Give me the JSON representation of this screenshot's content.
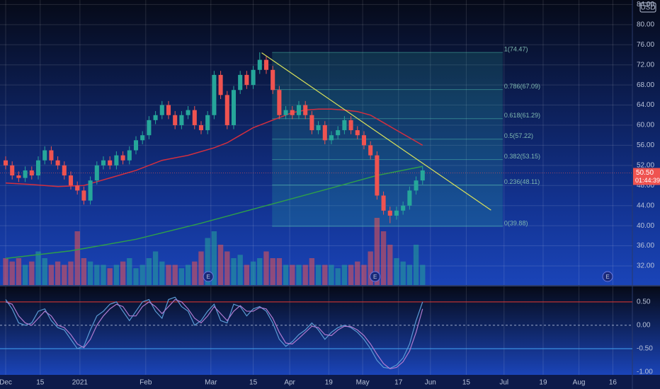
{
  "chart_data": {
    "type": "candlestick",
    "currency": "USD",
    "up_color": "#26a69a",
    "down_color": "#ef5350",
    "xlim": [
      -0.87,
      96.2
    ],
    "xticks": [
      {
        "value": 0,
        "label": "Dec"
      },
      {
        "value": 5.3,
        "label": "15"
      },
      {
        "value": 11.4,
        "label": "2021"
      },
      {
        "value": 21.5,
        "label": "Feb"
      },
      {
        "value": 31.5,
        "label": "Mar"
      },
      {
        "value": 38,
        "label": "15"
      },
      {
        "value": 43.6,
        "label": "Apr"
      },
      {
        "value": 49.6,
        "label": "19"
      },
      {
        "value": 54.8,
        "label": "May"
      },
      {
        "value": 60.3,
        "label": "17"
      },
      {
        "value": 65.2,
        "label": "Jun"
      },
      {
        "value": 70.7,
        "label": "15"
      },
      {
        "value": 76.5,
        "label": "Jul"
      },
      {
        "value": 82.5,
        "label": "19"
      },
      {
        "value": 88,
        "label": "Aug"
      },
      {
        "value": 93.2,
        "label": "16"
      }
    ],
    "ylim": [
      28.2,
      84.9
    ],
    "yticks": [
      {
        "value": 84,
        "label": "84.00"
      },
      {
        "value": 80,
        "label": "80.00"
      },
      {
        "value": 76,
        "label": "76.00"
      },
      {
        "value": 72,
        "label": "72.00"
      },
      {
        "value": 68,
        "label": "68.00"
      },
      {
        "value": 64,
        "label": "64.00"
      },
      {
        "value": 60,
        "label": "60.00"
      },
      {
        "value": 56,
        "label": "56.00"
      },
      {
        "value": 52,
        "label": "52.00"
      },
      {
        "value": 48,
        "label": "48.00"
      },
      {
        "value": 44,
        "label": "44.00"
      },
      {
        "value": 40,
        "label": "40.00"
      },
      {
        "value": 36,
        "label": "36.00"
      },
      {
        "value": 32,
        "label": "32.00"
      }
    ],
    "open": [
      53,
      52,
      50,
      49.5,
      51,
      50,
      53,
      55,
      53,
      52,
      50,
      48,
      47,
      45,
      49,
      52,
      53,
      52,
      54,
      53,
      55,
      57,
      58,
      61,
      62,
      64,
      62,
      60,
      62,
      63,
      60,
      59,
      62,
      70,
      66,
      60,
      67,
      70,
      68,
      71,
      73,
      71,
      67,
      62,
      63,
      62,
      64,
      62,
      59,
      60,
      57,
      58,
      59,
      61,
      59,
      58,
      56,
      54,
      46,
      43,
      42,
      43,
      44,
      47,
      49
    ],
    "high": [
      53.8,
      52.8,
      50.8,
      51.8,
      51.8,
      53.8,
      55.8,
      55.8,
      53.8,
      52.8,
      50.8,
      48.8,
      47.8,
      49.8,
      52.8,
      53.8,
      53.8,
      54.8,
      54.8,
      55.8,
      57.8,
      58.8,
      61.8,
      62.8,
      64.8,
      64.8,
      62.8,
      62.8,
      63.8,
      63.8,
      60.8,
      62.8,
      70.8,
      70.8,
      66.8,
      67.8,
      70.8,
      70.8,
      71.8,
      74.5,
      73.8,
      71.8,
      67.8,
      63.8,
      63.8,
      64.8,
      64.8,
      62.8,
      60.8,
      60.8,
      58.8,
      59.8,
      61.8,
      61.8,
      59.8,
      58.8,
      56.8,
      54.8,
      46.8,
      43.8,
      43.8,
      44.8,
      47.8,
      49.8,
      51.8
    ],
    "low": [
      51.2,
      49.2,
      48.7,
      48.7,
      49.2,
      49.2,
      52.2,
      52.2,
      51.2,
      49.2,
      47.2,
      46.2,
      44.2,
      44.2,
      48.2,
      51.2,
      51.2,
      51.2,
      52.2,
      52.2,
      54.2,
      56.2,
      57.2,
      60.2,
      61.2,
      61.2,
      59.2,
      59.2,
      61.2,
      59.2,
      58.2,
      58.2,
      61.2,
      65.2,
      59.2,
      59.2,
      66.2,
      67.2,
      67.2,
      70.2,
      70.2,
      66.2,
      61.2,
      61.2,
      61.2,
      61.2,
      61.2,
      58.2,
      58.2,
      56.2,
      56.2,
      57.2,
      58.2,
      58.2,
      57.2,
      55.2,
      53.2,
      45.2,
      42.2,
      40.5,
      41.2,
      42.2,
      43.2,
      46.2,
      48.2
    ],
    "close": [
      52,
      50,
      49.5,
      51,
      50,
      53,
      55,
      53,
      52,
      50,
      48,
      47,
      45,
      49,
      52,
      53,
      52,
      54,
      53,
      55,
      57,
      58,
      61,
      62,
      64,
      62,
      60,
      62,
      63,
      60,
      59,
      62,
      70,
      66,
      60,
      67,
      70,
      68,
      71,
      73,
      71,
      67,
      62,
      63,
      62,
      64,
      62,
      59,
      60,
      57,
      58,
      59,
      61,
      59,
      58,
      56,
      54,
      46,
      43,
      42,
      43,
      44,
      47,
      49,
      51
    ],
    "volume": [
      4,
      3.5,
      4,
      3,
      3.5,
      5,
      4,
      3,
      3.5,
      3,
      3.5,
      8,
      4,
      3.5,
      3,
      3,
      2.5,
      3,
      3.5,
      4,
      2.5,
      3,
      4,
      5,
      3.5,
      3,
      3,
      2.5,
      3,
      3.5,
      5,
      7,
      8,
      6,
      5,
      4,
      4.5,
      3,
      3.5,
      4,
      5,
      4,
      4,
      3,
      3,
      3,
      3,
      4,
      3,
      3,
      3,
      2.5,
      3,
      3,
      3.5,
      3,
      5,
      10,
      8,
      6,
      4,
      3.5,
      3,
      6,
      3
    ],
    "moving_averages": [
      {
        "color": "#d32f3f",
        "x": [
          0,
          4,
          8,
          12,
          16,
          20,
          24,
          28,
          32,
          34,
          36,
          38,
          40,
          42,
          44,
          46,
          48,
          50,
          52,
          54,
          56,
          58,
          60,
          62,
          64
        ],
        "values": [
          48.5,
          48.2,
          47.8,
          48,
          49.5,
          51,
          53,
          54,
          55.5,
          56.5,
          58,
          59.5,
          60.5,
          61.5,
          62.5,
          63,
          63.2,
          63.2,
          63,
          62.7,
          62,
          60.5,
          59,
          57.5,
          56
        ]
      },
      {
        "color": "#2e9e4a",
        "x": [
          0,
          10,
          20,
          30,
          40,
          50,
          57,
          64
        ],
        "values": [
          33.5,
          35,
          37.3,
          40.5,
          44,
          47.5,
          50,
          51.8
        ]
      }
    ],
    "last_price": {
      "value": 50.5,
      "label": "50.50"
    },
    "countdown": "01:44:39",
    "trend_line": {
      "color": "#d8e05a",
      "x": [
        39.3,
        74.5
      ],
      "values": [
        74.4,
        43.1
      ]
    },
    "fib_retracement": {
      "x": [
        40.9,
        76.3
      ],
      "levels": [
        {
          "label": "1(74.47)",
          "value": 74.47
        },
        {
          "label": "0.786(67.09)",
          "value": 67.09
        },
        {
          "label": "0.618(61.29)",
          "value": 61.29
        },
        {
          "label": "0.5(57.22)",
          "value": 57.22
        },
        {
          "label": "0.382(53.15)",
          "value": 53.15
        },
        {
          "label": "0.236(48.11)",
          "value": 48.11
        },
        {
          "label": "0(39.88)",
          "value": 39.88
        }
      ]
    },
    "earnings": [
      {
        "x": 31.1,
        "label": "E"
      },
      {
        "x": 56.7,
        "label": "E"
      },
      {
        "x": 92.4,
        "label": "E"
      }
    ],
    "oscillator": {
      "ylim": [
        -1.06,
        0.83
      ],
      "yticks": [
        {
          "value": 0.5,
          "label": "0.50"
        },
        {
          "value": 0,
          "label": "0.00"
        },
        {
          "value": -0.5,
          "label": "-0.50"
        },
        {
          "value": -1,
          "label": "-1.00"
        }
      ],
      "series": [
        {
          "color": "#5b9bd5",
          "values": [
            0.55,
            0.35,
            0.05,
            0.0,
            0.05,
            0.3,
            0.35,
            0.1,
            -0.05,
            -0.1,
            -0.3,
            -0.5,
            -0.45,
            -0.1,
            0.2,
            0.3,
            0.45,
            0.5,
            0.3,
            0.1,
            0.3,
            0.5,
            0.55,
            0.3,
            0.15,
            0.55,
            0.6,
            0.4,
            0.3,
            0.0,
            0.1,
            0.3,
            0.45,
            0.1,
            0.05,
            0.45,
            0.4,
            0.2,
            0.35,
            0.4,
            0.3,
            0.05,
            -0.3,
            -0.45,
            -0.35,
            -0.2,
            -0.1,
            0.05,
            -0.1,
            -0.3,
            -0.15,
            -0.05,
            0.0,
            -0.05,
            -0.15,
            -0.3,
            -0.5,
            -0.75,
            -0.9,
            -0.92,
            -0.85,
            -0.7,
            -0.4,
            0.1,
            0.5
          ]
        },
        {
          "color": "#b07bd0",
          "values": [
            0.5,
            0.45,
            0.2,
            0.05,
            0.0,
            0.15,
            0.3,
            0.2,
            0.0,
            -0.05,
            -0.2,
            -0.4,
            -0.48,
            -0.3,
            0.0,
            0.2,
            0.35,
            0.45,
            0.4,
            0.2,
            0.2,
            0.4,
            0.5,
            0.4,
            0.25,
            0.4,
            0.55,
            0.5,
            0.35,
            0.15,
            0.05,
            0.2,
            0.4,
            0.25,
            0.1,
            0.3,
            0.42,
            0.3,
            0.3,
            0.38,
            0.35,
            0.15,
            -0.15,
            -0.38,
            -0.4,
            -0.28,
            -0.15,
            -0.02,
            -0.05,
            -0.2,
            -0.22,
            -0.1,
            -0.02,
            -0.03,
            -0.1,
            -0.22,
            -0.4,
            -0.62,
            -0.82,
            -0.93,
            -0.9,
            -0.78,
            -0.55,
            -0.15,
            0.35
          ]
        }
      ]
    }
  }
}
